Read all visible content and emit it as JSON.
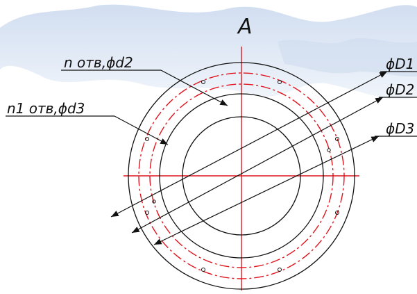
{
  "drawing": {
    "view_label": "A",
    "labels": {
      "holes_d2": "n отв,ϕd2",
      "holes_d3": "n1 отв,ϕd3",
      "dia_D1": "ϕD1",
      "dia_D2": "ϕD2",
      "dia_D3": "ϕD3"
    },
    "colors": {
      "outline": "#111111",
      "centerline": "#e0141e",
      "background_map": "#dbe6f4"
    }
  }
}
